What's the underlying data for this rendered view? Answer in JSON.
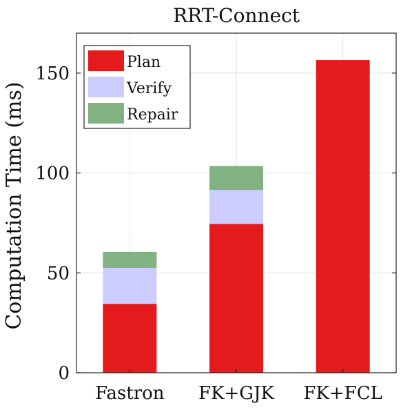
{
  "chart_data": {
    "type": "bar",
    "stacked": true,
    "title": "RRT-Connect",
    "xlabel": "",
    "ylabel": "Computation Time (ms)",
    "categories": [
      "Fastron",
      "FK+GJK",
      "FK+FCL"
    ],
    "series": [
      {
        "name": "Plan",
        "color": "#e41a1c",
        "values": [
          34.5,
          74.5,
          156.5
        ]
      },
      {
        "name": "Verify",
        "color": "#ccccff",
        "values": [
          18,
          17,
          0
        ]
      },
      {
        "name": "Repair",
        "color": "#82b282",
        "values": [
          8,
          12,
          0
        ]
      }
    ],
    "ylim": [
      0,
      170
    ],
    "yticks": [
      0,
      50,
      100,
      150
    ],
    "grid": true,
    "legend": "top-left"
  }
}
